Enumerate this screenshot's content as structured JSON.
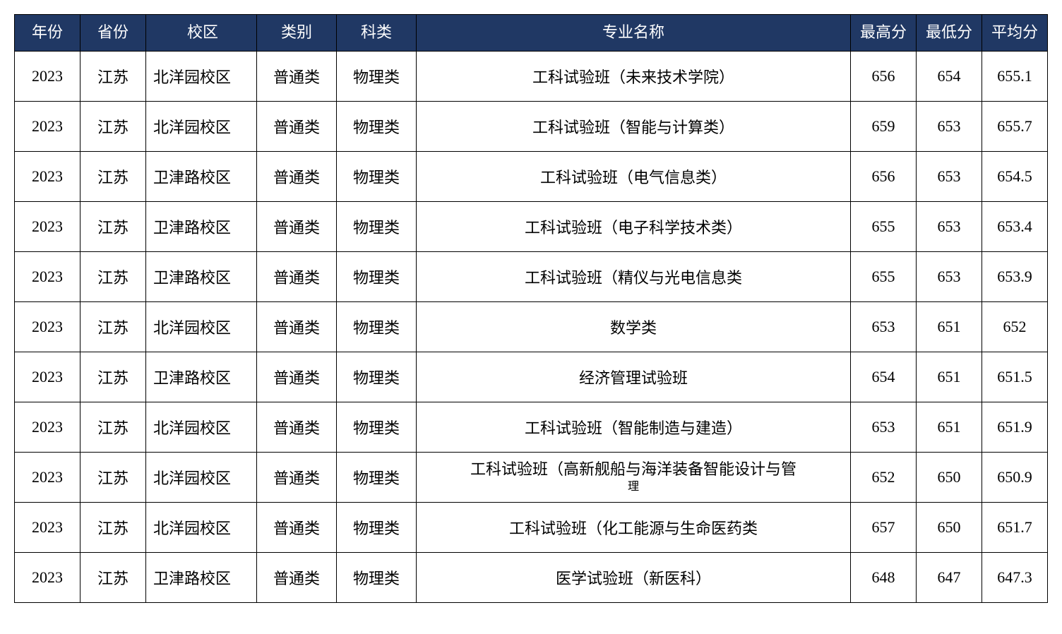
{
  "table": {
    "header_bg": "#203864",
    "header_color": "#ffffff",
    "border_color": "#000000",
    "columns": [
      {
        "key": "year",
        "label": "年份"
      },
      {
        "key": "province",
        "label": "省份"
      },
      {
        "key": "campus",
        "label": "校区"
      },
      {
        "key": "category",
        "label": "类别"
      },
      {
        "key": "subject",
        "label": "科类"
      },
      {
        "key": "major",
        "label": "专业名称"
      },
      {
        "key": "max",
        "label": "最高分"
      },
      {
        "key": "min",
        "label": "最低分"
      },
      {
        "key": "avg",
        "label": "平均分"
      }
    ],
    "rows": [
      {
        "year": "2023",
        "province": "江苏",
        "campus": "北洋园校区",
        "category": "普通类",
        "subject": "物理类",
        "major": "工科试验班（未来技术学院）",
        "max": "656",
        "min": "654",
        "avg": "655.1"
      },
      {
        "year": "2023",
        "province": "江苏",
        "campus": "北洋园校区",
        "category": "普通类",
        "subject": "物理类",
        "major": "工科试验班（智能与计算类）",
        "max": "659",
        "min": "653",
        "avg": "655.7"
      },
      {
        "year": "2023",
        "province": "江苏",
        "campus": "卫津路校区",
        "category": "普通类",
        "subject": "物理类",
        "major": "工科试验班（电气信息类）",
        "max": "656",
        "min": "653",
        "avg": "654.5"
      },
      {
        "year": "2023",
        "province": "江苏",
        "campus": "卫津路校区",
        "category": "普通类",
        "subject": "物理类",
        "major": "工科试验班（电子科学技术类）",
        "max": "655",
        "min": "653",
        "avg": "653.4"
      },
      {
        "year": "2023",
        "province": "江苏",
        "campus": "卫津路校区",
        "category": "普通类",
        "subject": "物理类",
        "major": "工科试验班（精仪与光电信息类",
        "max": "655",
        "min": "653",
        "avg": "653.9"
      },
      {
        "year": "2023",
        "province": "江苏",
        "campus": "北洋园校区",
        "category": "普通类",
        "subject": "物理类",
        "major": "数学类",
        "max": "653",
        "min": "651",
        "avg": "652"
      },
      {
        "year": "2023",
        "province": "江苏",
        "campus": "卫津路校区",
        "category": "普通类",
        "subject": "物理类",
        "major": "经济管理试验班",
        "max": "654",
        "min": "651",
        "avg": "651.5"
      },
      {
        "year": "2023",
        "province": "江苏",
        "campus": "北洋园校区",
        "category": "普通类",
        "subject": "物理类",
        "major": "工科试验班（智能制造与建造）",
        "max": "653",
        "min": "651",
        "avg": "651.9"
      },
      {
        "year": "2023",
        "province": "江苏",
        "campus": "北洋园校区",
        "category": "普通类",
        "subject": "物理类",
        "major": "工科试验班（高新舰船与海洋装备智能设计与管",
        "major_sub": "理",
        "max": "652",
        "min": "650",
        "avg": "650.9"
      },
      {
        "year": "2023",
        "province": "江苏",
        "campus": "北洋园校区",
        "category": "普通类",
        "subject": "物理类",
        "major": "工科试验班（化工能源与生命医药类",
        "max": "657",
        "min": "650",
        "avg": "651.7"
      },
      {
        "year": "2023",
        "province": "江苏",
        "campus": "卫津路校区",
        "category": "普通类",
        "subject": "物理类",
        "major": "医学试验班（新医科）",
        "max": "648",
        "min": "647",
        "avg": "647.3"
      }
    ]
  }
}
